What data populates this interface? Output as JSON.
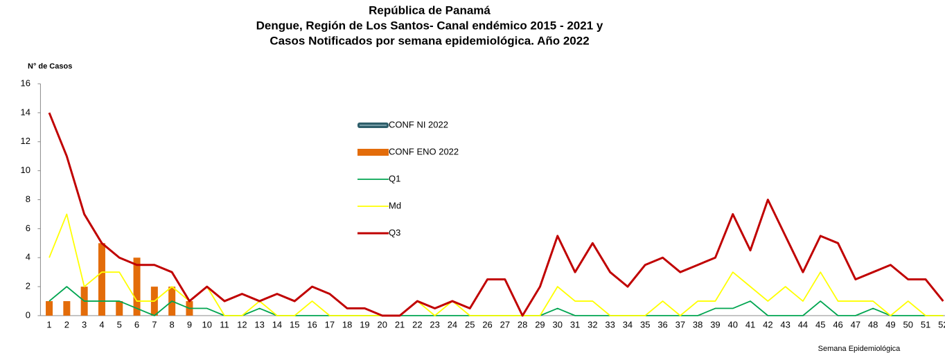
{
  "chart_data": {
    "type": "line",
    "title": [
      "República de Panamá",
      "Dengue, Región de Los Santos- Canal endémico 2015 - 2021 y",
      "Casos Notificados por semana epidemiológica. Año 2022"
    ],
    "y_label": "N° de Casos",
    "x_label": "Semana Epidemiológica",
    "categories": [
      "1",
      "2",
      "3",
      "4",
      "5",
      "6",
      "7",
      "8",
      "9",
      "10",
      "11",
      "12",
      "13",
      "14",
      "15",
      "16",
      "17",
      "18",
      "19",
      "20",
      "21",
      "22",
      "23",
      "24",
      "25",
      "26",
      "27",
      "28",
      "29",
      "30",
      "31",
      "32",
      "33",
      "34",
      "35",
      "36",
      "37",
      "38",
      "39",
      "40",
      "41",
      "42",
      "43",
      "44",
      "45",
      "46",
      "47",
      "48",
      "49",
      "50",
      "51",
      "52"
    ],
    "ylim": [
      0,
      16
    ],
    "yticks": [
      0,
      2,
      4,
      6,
      8,
      10,
      12,
      14,
      16
    ],
    "series": [
      {
        "name": "CONF NI 2022",
        "type": "line",
        "color": "#2e5e6a",
        "values": [
          null,
          null,
          null,
          null,
          null,
          null,
          null,
          null,
          null,
          null,
          null,
          null,
          null,
          null,
          null,
          null,
          null,
          null,
          null,
          null,
          null,
          null,
          null,
          null,
          null,
          null,
          null,
          null,
          null,
          null,
          null,
          null,
          null,
          null,
          null,
          null,
          null,
          null,
          null,
          null,
          null,
          null,
          null,
          null,
          null,
          null,
          null,
          null,
          null,
          null,
          null,
          null
        ]
      },
      {
        "name": "CONF ENO 2022",
        "type": "bar",
        "color": "#e36c0a",
        "values": [
          1,
          1,
          2,
          5,
          1,
          4,
          2,
          2,
          1,
          null,
          null,
          null,
          null,
          null,
          null,
          null,
          null,
          null,
          null,
          null,
          null,
          null,
          null,
          null,
          null,
          null,
          null,
          null,
          null,
          null,
          null,
          null,
          null,
          null,
          null,
          null,
          null,
          null,
          null,
          null,
          null,
          null,
          null,
          null,
          null,
          null,
          null,
          null,
          null,
          null,
          null,
          null
        ]
      },
      {
        "name": "Q1",
        "type": "line",
        "color": "#00a550",
        "values": [
          1,
          2,
          1,
          1,
          1,
          0.5,
          0,
          1,
          0.5,
          0.5,
          0,
          0,
          0.5,
          0,
          0,
          0,
          0,
          0,
          0,
          0,
          0,
          0,
          0,
          0,
          0,
          0,
          0,
          0,
          0,
          0.5,
          0,
          0,
          0,
          0,
          0,
          0,
          0,
          0,
          0.5,
          0.5,
          1,
          0,
          0,
          0,
          1,
          0,
          0,
          0.5,
          0,
          0,
          0,
          0
        ]
      },
      {
        "name": "Md",
        "type": "line",
        "color": "#ffff00",
        "values": [
          4,
          7,
          2,
          3,
          3,
          1,
          1,
          2,
          1,
          2,
          0,
          0,
          1,
          0,
          0,
          1,
          0,
          0,
          0,
          0,
          0,
          1,
          0,
          1,
          0,
          0,
          0,
          0,
          0,
          2,
          1,
          1,
          0,
          0,
          0,
          1,
          0,
          1,
          1,
          3,
          2,
          1,
          2,
          1,
          3,
          1,
          1,
          1,
          0,
          1,
          0,
          0
        ]
      },
      {
        "name": "Q3",
        "type": "line",
        "color": "#c00000",
        "values": [
          14,
          11,
          7,
          5,
          4,
          3.5,
          3.5,
          3,
          1,
          2,
          1,
          1.5,
          1,
          1.5,
          1,
          2,
          1.5,
          0.5,
          0.5,
          0,
          0,
          1,
          0.5,
          1,
          0.5,
          2.5,
          2.5,
          0,
          2,
          5.5,
          3,
          5,
          3,
          2,
          3.5,
          4,
          3,
          3.5,
          4,
          7,
          4.5,
          8,
          5.5,
          3,
          5.5,
          5,
          2.5,
          3,
          3.5,
          2.5,
          2.5,
          1
        ]
      }
    ]
  }
}
